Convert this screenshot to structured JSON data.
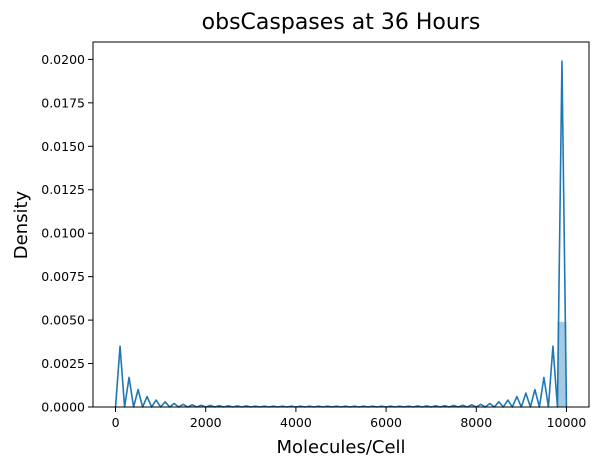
{
  "chart_data": {
    "type": "line",
    "title": "obsCaspases at 36 Hours",
    "xlabel": "Molecules/Cell",
    "ylabel": "Density",
    "xlim": [
      -500,
      10500
    ],
    "ylim": [
      0,
      0.021
    ],
    "xticks": [
      0,
      2000,
      4000,
      6000,
      8000,
      10000
    ],
    "xtick_labels": [
      "0",
      "2000",
      "4000",
      "6000",
      "8000",
      "10000"
    ],
    "yticks": [
      0,
      0.0025,
      0.005,
      0.0075,
      0.01,
      0.0125,
      0.015,
      0.0175,
      0.02
    ],
    "ytick_labels": [
      "0.0000",
      "0.0025",
      "0.0050",
      "0.0075",
      "0.0100",
      "0.0125",
      "0.0150",
      "0.0175",
      "0.0200"
    ],
    "grid": false,
    "colors": {
      "line": "#1f77b4",
      "bar": "#1f77b4"
    },
    "histogram": {
      "bins": [
        {
          "x0": 9800,
          "x1": 10000,
          "density": 0.0049
        }
      ]
    },
    "series": [
      {
        "x": [
          0,
          100,
          200,
          300,
          400,
          500,
          600,
          700,
          800,
          900,
          1000,
          1100,
          1200,
          1300,
          1400,
          1500,
          1600,
          1700,
          1800,
          1900,
          2000,
          2100,
          2200,
          2300,
          2400,
          2500,
          2600,
          2700,
          2800,
          2900,
          3000,
          3100,
          3200,
          3300,
          3400,
          3500,
          3600,
          3700,
          3800,
          3900,
          4000,
          4100,
          4200,
          4300,
          4400,
          4500,
          4600,
          4700,
          4800,
          4900,
          5000,
          5100,
          5200,
          5300,
          5400,
          5500,
          5600,
          5700,
          5800,
          5900,
          6000,
          6100,
          6200,
          6300,
          6400,
          6500,
          6600,
          6700,
          6800,
          6900,
          7000,
          7100,
          7200,
          7300,
          7400,
          7500,
          7600,
          7700,
          7800,
          7900,
          8000,
          8100,
          8200,
          8300,
          8400,
          8500,
          8600,
          8700,
          8800,
          8900,
          9000,
          9100,
          9200,
          9300,
          9400,
          9500,
          9600,
          9700,
          9800,
          9900,
          10000
        ],
        "y": [
          0.0,
          0.0035,
          0.0,
          0.0017,
          0.0,
          0.001,
          0.0,
          0.0006,
          0.0,
          0.0004,
          0.0,
          0.0003,
          0.0,
          0.0002,
          0.0,
          0.00015,
          0.0,
          0.00012,
          0.0,
          0.0001,
          0.0,
          9e-05,
          0.0,
          8e-05,
          0.0,
          7e-05,
          0.0,
          6e-05,
          0.0,
          6e-05,
          0.0,
          5e-05,
          0.0,
          5e-05,
          0.0,
          5e-05,
          0.0,
          5e-05,
          0.0,
          5e-05,
          0.0,
          5e-05,
          0.0,
          5e-05,
          0.0,
          5e-05,
          0.0,
          5e-05,
          0.0,
          5e-05,
          0.0,
          5e-05,
          0.0,
          5e-05,
          0.0,
          5e-05,
          0.0,
          5e-05,
          0.0,
          5e-05,
          0.0,
          5e-05,
          0.0,
          5e-05,
          0.0,
          5e-05,
          0.0,
          6e-05,
          0.0,
          6e-05,
          0.0,
          7e-05,
          0.0,
          8e-05,
          0.0,
          9e-05,
          0.0,
          0.0001,
          0.0,
          0.00012,
          0.0,
          0.00015,
          0.0,
          0.0002,
          0.0,
          0.0003,
          0.0,
          0.0004,
          0.0,
          0.0006,
          0.0,
          0.0008,
          0.0,
          0.001,
          0.0,
          0.0017,
          0.0,
          0.0035,
          0.0,
          0.0199,
          0.0
        ]
      }
    ]
  }
}
